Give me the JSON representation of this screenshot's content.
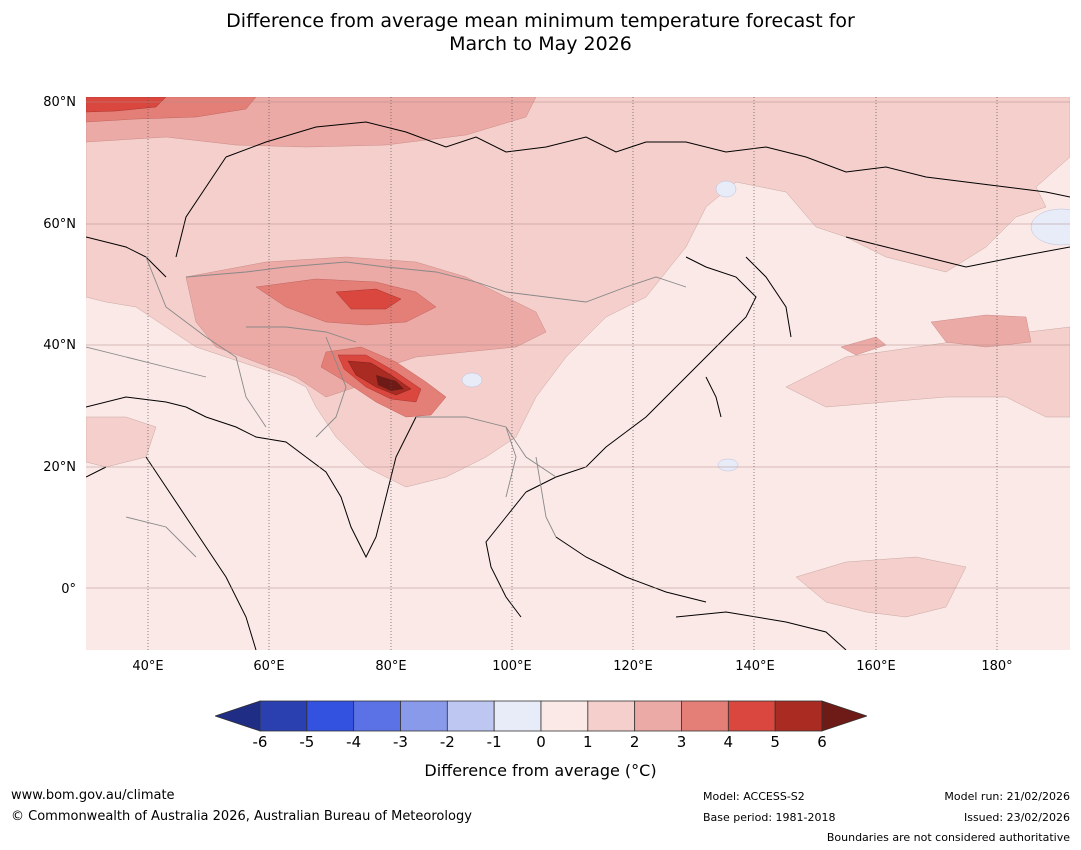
{
  "header": {
    "title_line1": "Difference from average mean minimum temperature forecast for",
    "title_line2": "March to May 2026"
  },
  "map": {
    "lat_labels": [
      "80°N",
      "60°N",
      "40°N",
      "20°N",
      "0°"
    ],
    "lon_labels": [
      "40°E",
      "60°E",
      "80°E",
      "100°E",
      "120°E",
      "140°E",
      "160°E",
      "180°"
    ]
  },
  "colorbar": {
    "ticks": [
      "-6",
      "-5",
      "-4",
      "-3",
      "-2",
      "-1",
      "0",
      "1",
      "2",
      "3",
      "4",
      "5",
      "6"
    ],
    "colors": [
      "#1f2d85",
      "#2a3fb0",
      "#3352e0",
      "#5b72e6",
      "#8a9aea",
      "#bec7f2",
      "#e8ebf8",
      "#fbe9e7",
      "#f4cfcb",
      "#ecaaa6",
      "#e47f78",
      "#d9473e",
      "#a92b22",
      "#6e1a16"
    ],
    "label": "Difference from average (°C)"
  },
  "footer": {
    "website": "www.bom.gov.au/climate",
    "copyright": "© Commonwealth of Australia 2026, Australian Bureau of Meteorology",
    "model": "Model: ACCESS-S2",
    "base_period": "Base period: 1981-2018",
    "model_run": "Model run: 21/02/2026",
    "issued": "Issued: 23/02/2026",
    "disclaimer": "Boundaries are not considered authoritative"
  }
}
